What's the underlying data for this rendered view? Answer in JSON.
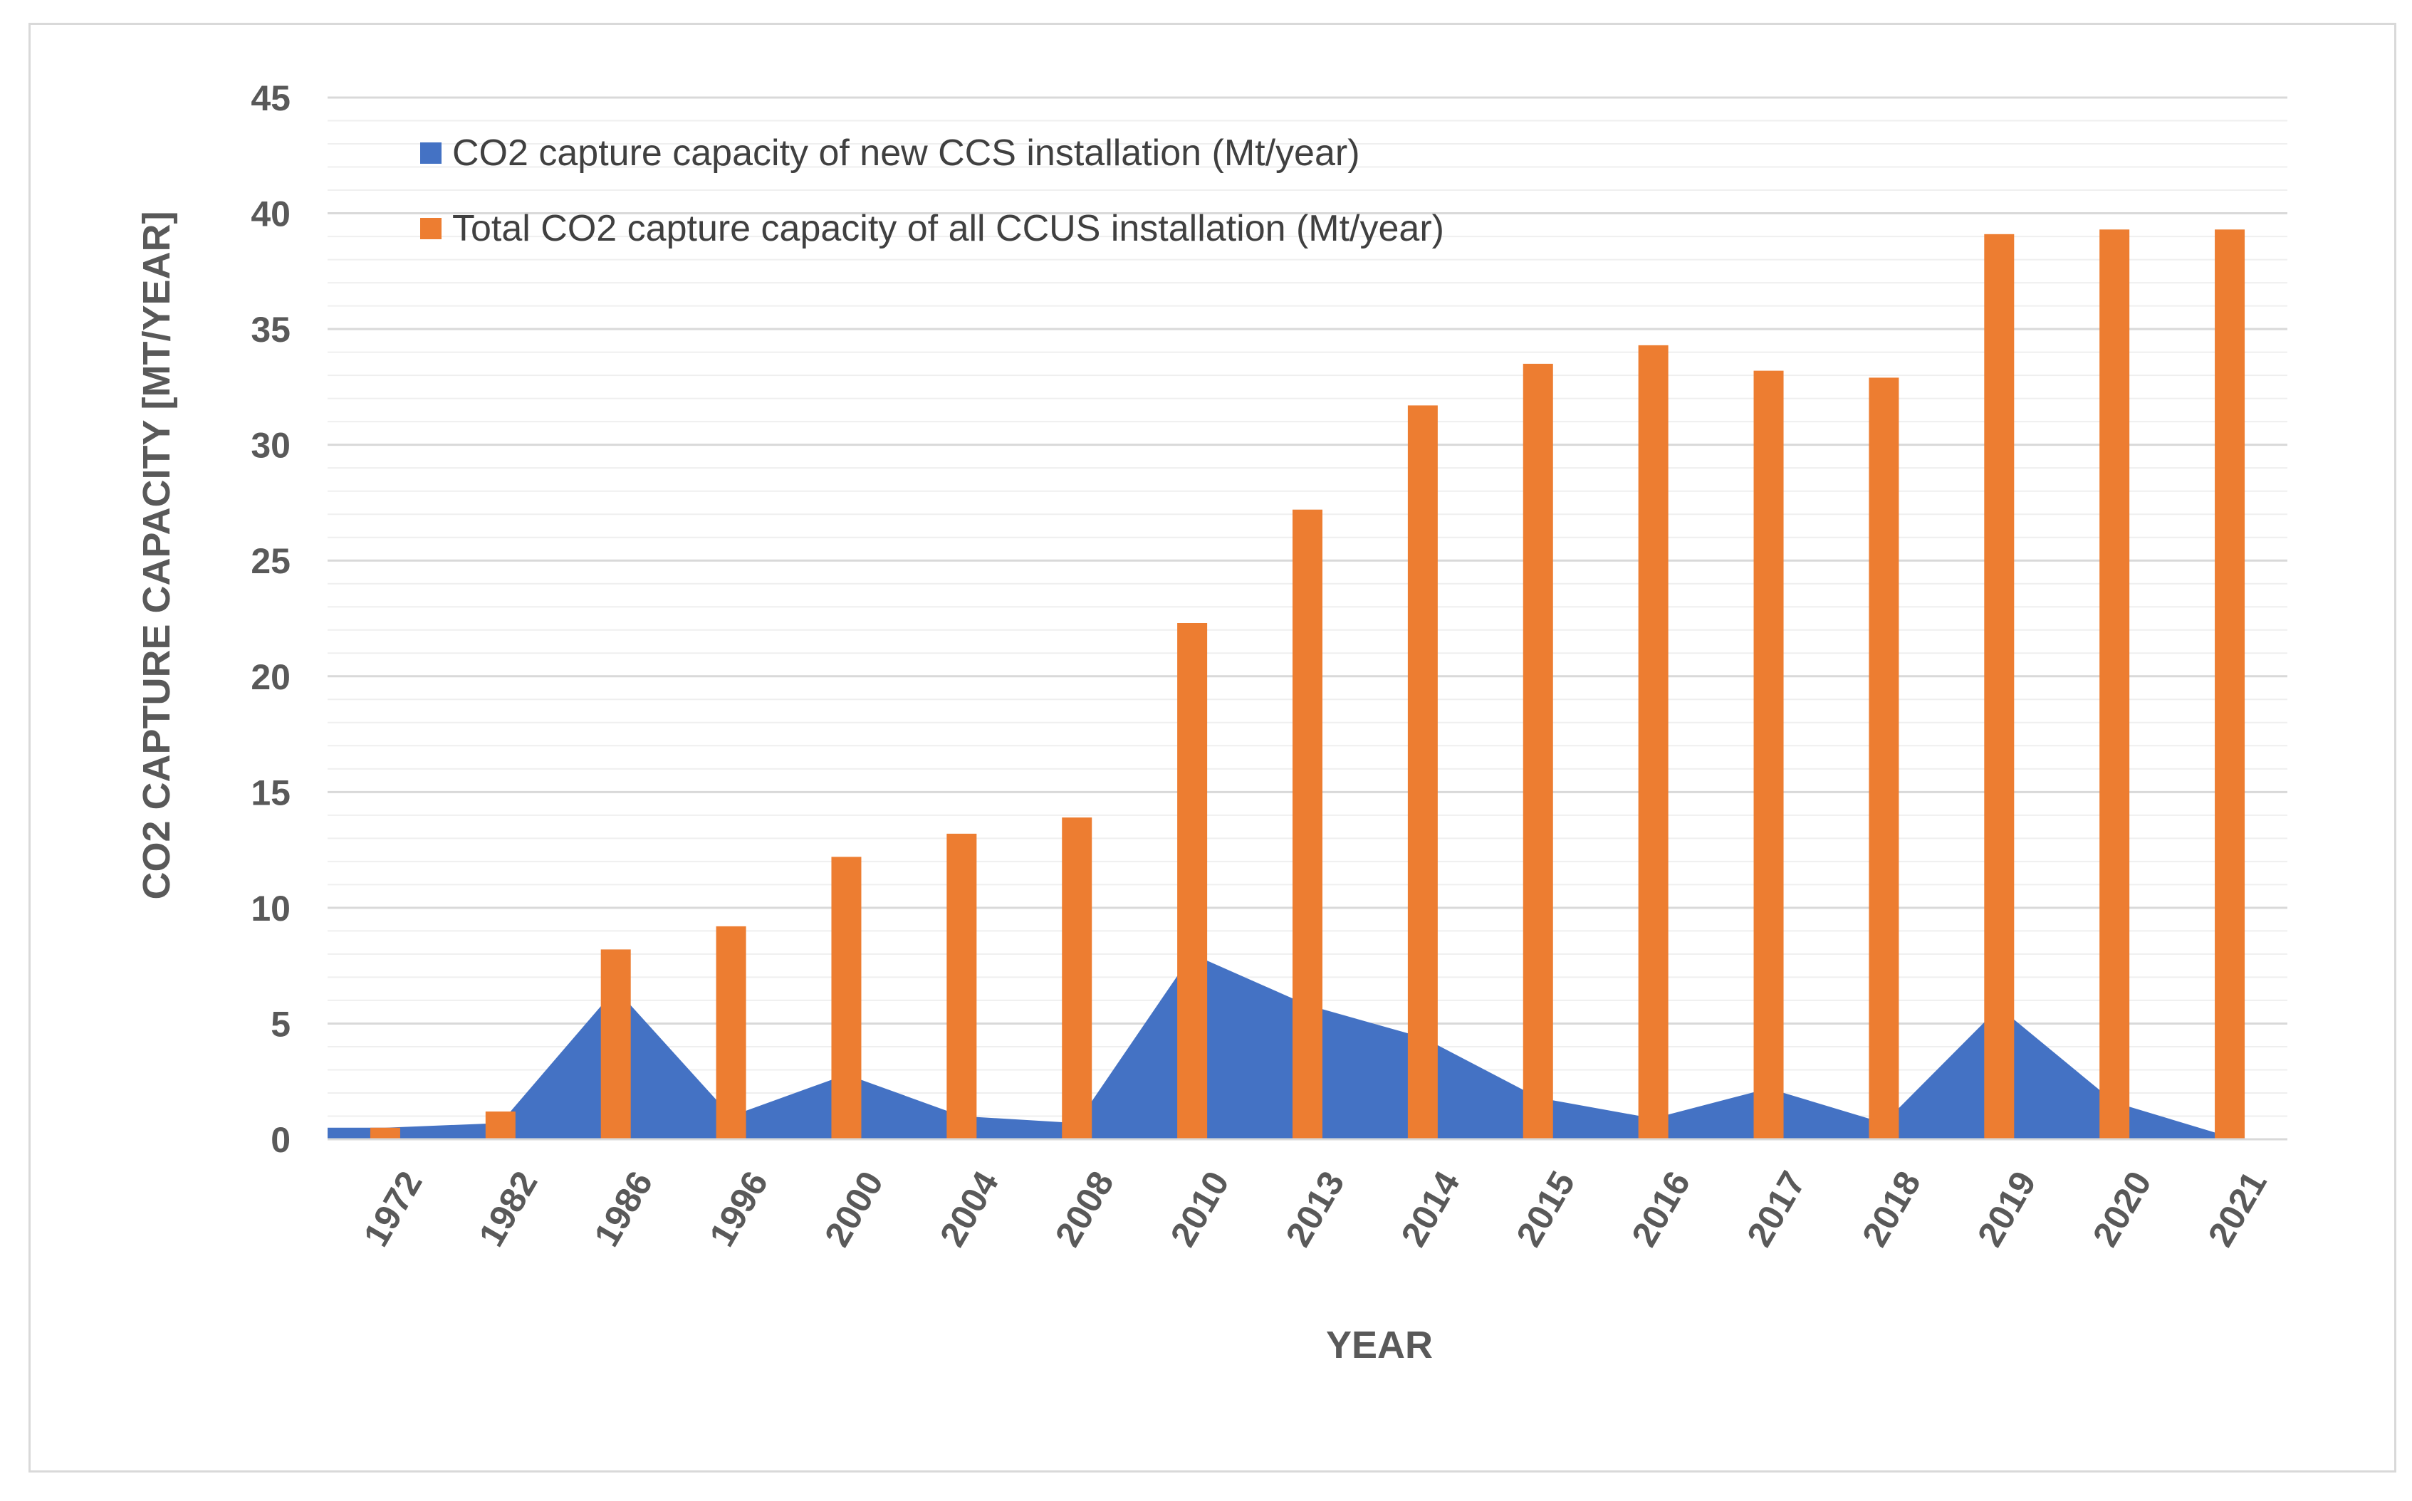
{
  "chart_data": {
    "type": "bar",
    "title": "",
    "xlabel": "YEAR",
    "ylabel": "CO2 CAPTURE CAPACITY [MT/YEAR]",
    "ylim": [
      0,
      45
    ],
    "yticks": [
      "0",
      "5",
      "10",
      "15",
      "20",
      "25",
      "30",
      "35",
      "40",
      "45"
    ],
    "grid": true,
    "legend_position": "top-left",
    "categories": [
      "1972",
      "1982",
      "1986",
      "1996",
      "2000",
      "2004",
      "2008",
      "2010",
      "2013",
      "2014",
      "2015",
      "2016",
      "2017",
      "2018",
      "2019",
      "2020",
      "2021"
    ],
    "series": [
      {
        "name": "CO2  capture capacity of new CCS installation (Mt/year)",
        "kind": "area",
        "color": "#4472c4",
        "values": [
          0.5,
          0.7,
          6.5,
          1.0,
          2.8,
          1.0,
          0.7,
          8.0,
          5.8,
          4.4,
          1.8,
          0.9,
          2.2,
          0.7,
          5.7,
          1.6,
          0.1
        ]
      },
      {
        "name": "Total CO2  capture capacity of all CCUS installation (Mt/year)",
        "kind": "bar",
        "color": "#ed7d31",
        "values": [
          0.5,
          1.2,
          8.2,
          9.2,
          12.2,
          13.2,
          13.9,
          22.3,
          27.2,
          31.7,
          33.5,
          34.3,
          33.2,
          32.9,
          39.1,
          39.3,
          39.3
        ]
      }
    ]
  }
}
